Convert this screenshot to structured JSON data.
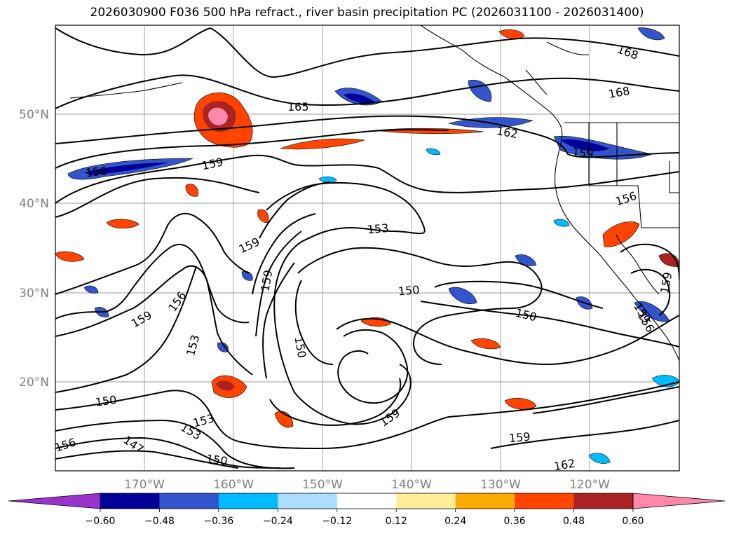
{
  "title": "2026030900 F036 500 hPa refract., river basin precipitation PC (2026031100 - 2026031400)",
  "latitude_labels": [
    "50°N",
    "40°N",
    "30°N",
    "20°N"
  ],
  "longitude_labels": [
    "170°W",
    "160°W",
    "150°W",
    "140°W",
    "130°W",
    "120°W"
  ],
  "contour_labels": [
    "165",
    "168",
    "168",
    "162",
    "159",
    "159",
    "156",
    "156",
    "159",
    "153",
    "159",
    "159",
    "156",
    "159",
    "150",
    "150",
    "150",
    "153",
    "150",
    "153",
    "153",
    "159",
    "159",
    "156",
    "147",
    "150",
    "162",
    "159",
    "156"
  ],
  "colorbar": {
    "ticks": [
      "−0.60",
      "−0.48",
      "−0.36",
      "−0.24",
      "−0.12",
      "0.12",
      "0.24",
      "0.36",
      "0.48",
      "0.60"
    ],
    "colors": [
      "#9933cc",
      "#000099",
      "#3355cc",
      "#00bbff",
      "#aaddff",
      "#ffffff",
      "#ffee99",
      "#ffaa00",
      "#ff4400",
      "#aa2222",
      "#ff88aa"
    ]
  }
}
